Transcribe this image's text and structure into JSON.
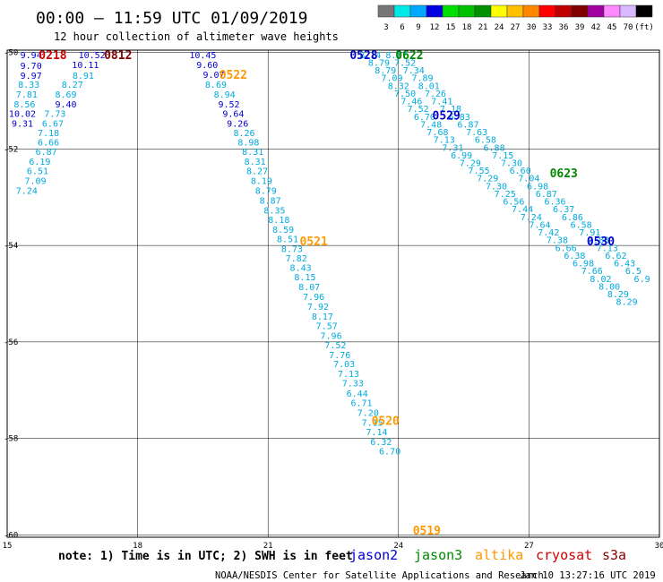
{
  "header": {
    "title": "00:00 – 11:59 UTC 01/09/2019",
    "subtitle": "12 hour collection of altimeter wave heights"
  },
  "colorbar": {
    "colors": [
      "#777777",
      "#00e8e8",
      "#00a8ff",
      "#0000e0",
      "#00e000",
      "#00c000",
      "#009000",
      "#ffff00",
      "#ffc000",
      "#ff8800",
      "#ff0000",
      "#c00000",
      "#800000",
      "#a000a0",
      "#ff88ff",
      "#d8b8ff",
      "#000000"
    ],
    "labels": [
      "3",
      "6",
      "9",
      "12",
      "15",
      "18",
      "21",
      "24",
      "27",
      "30",
      "33",
      "36",
      "39",
      "42",
      "45",
      "70",
      "(ft)"
    ]
  },
  "axes": {
    "x_ticks": [
      "15",
      "18",
      "21",
      "24",
      "27",
      "30"
    ],
    "y_ticks": [
      "-50",
      "-52",
      "-54",
      "-56",
      "-58",
      "-60"
    ]
  },
  "footer": {
    "note": "note:  1) Time is in UTC;  2) SWH is in feet",
    "credit": "NOAA/NESDIS Center for Satellite Applications and Research",
    "timestamp": "Jan 10 13:27:16 UTC 2019",
    "legend": [
      {
        "name": "jason2",
        "color": "#0000d0"
      },
      {
        "name": "jason3",
        "color": "#008800"
      },
      {
        "name": "altika",
        "color": "#ff9900"
      },
      {
        "name": "cryosat",
        "color": "#d00000"
      },
      {
        "name": "s3a",
        "color": "#880000"
      }
    ]
  },
  "chart_data": {
    "type": "scatter",
    "xlim": [
      15,
      30
    ],
    "ylim": [
      -60.05,
      -49.95
    ],
    "grid": true,
    "time_labels": [
      {
        "text": "0218",
        "lon": 16.05,
        "lat": -50.04,
        "color": "#d00000"
      },
      {
        "text": "0812",
        "lon": 17.55,
        "lat": -50.04,
        "color": "#880000"
      },
      {
        "text": "0522",
        "lon": 20.2,
        "lat": -50.45,
        "color": "#ff9900"
      },
      {
        "text": "0521",
        "lon": 22.05,
        "lat": -53.9,
        "color": "#ff9900"
      },
      {
        "text": "0520",
        "lon": 23.7,
        "lat": -57.63,
        "color": "#ff9900"
      },
      {
        "text": "0519",
        "lon": 24.65,
        "lat": -59.9,
        "color": "#ff9900"
      },
      {
        "text": "0528",
        "lon": 23.2,
        "lat": -50.04,
        "color": "#0000d0"
      },
      {
        "text": "0622",
        "lon": 24.25,
        "lat": -50.04,
        "color": "#008800"
      },
      {
        "text": "0529",
        "lon": 25.1,
        "lat": -51.3,
        "color": "#0000d0"
      },
      {
        "text": "0623",
        "lon": 27.8,
        "lat": -52.49,
        "color": "#008800"
      },
      {
        "text": "0530",
        "lon": 28.65,
        "lat": -53.9,
        "color": "#0000d0"
      }
    ],
    "tracks": [
      {
        "name": "a",
        "points": [
          {
            "lon": 15.55,
            "lat": -50.04,
            "v": "9.94",
            "c": "#0000d0"
          },
          {
            "lon": 15.55,
            "lat": -50.27,
            "v": "9.70",
            "c": "#0000d0"
          },
          {
            "lon": 15.55,
            "lat": -50.47,
            "v": "9.97",
            "c": "#0000d0"
          },
          {
            "lon": 15.5,
            "lat": -50.66,
            "v": "8.33",
            "c": "#00aadd"
          },
          {
            "lon": 15.45,
            "lat": -50.86,
            "v": "7.81",
            "c": "#00aadd"
          },
          {
            "lon": 15.4,
            "lat": -51.06,
            "v": "8.56",
            "c": "#00aadd"
          },
          {
            "lon": 15.35,
            "lat": -51.26,
            "v": "10.02",
            "c": "#0000d0"
          },
          {
            "lon": 15.35,
            "lat": -51.46,
            "v": "9.31",
            "c": "#0000d0"
          }
        ]
      },
      {
        "name": "b",
        "points": [
          {
            "lon": 16.95,
            "lat": -50.04,
            "v": "10.52",
            "c": "#0000d0"
          },
          {
            "lon": 16.8,
            "lat": -50.25,
            "v": "10.11",
            "c": "#0000d0"
          },
          {
            "lon": 16.75,
            "lat": -50.47,
            "v": "8.91",
            "c": "#00aadd"
          },
          {
            "lon": 16.5,
            "lat": -50.66,
            "v": "8.27",
            "c": "#00aadd"
          },
          {
            "lon": 16.35,
            "lat": -50.86,
            "v": "8.69",
            "c": "#00aadd"
          },
          {
            "lon": 16.35,
            "lat": -51.06,
            "v": "9.40",
            "c": "#0000d0"
          },
          {
            "lon": 16.1,
            "lat": -51.26,
            "v": "7.73",
            "c": "#00aadd"
          },
          {
            "lon": 16.05,
            "lat": -51.46,
            "v": "6.67",
            "c": "#00aadd"
          },
          {
            "lon": 15.95,
            "lat": -51.66,
            "v": "7.18",
            "c": "#00aadd"
          },
          {
            "lon": 15.95,
            "lat": -51.85,
            "v": "6.66",
            "c": "#00aadd"
          },
          {
            "lon": 15.9,
            "lat": -52.05,
            "v": "6.87",
            "c": "#00aadd"
          },
          {
            "lon": 15.75,
            "lat": -52.25,
            "v": "6.19",
            "c": "#00aadd"
          },
          {
            "lon": 15.7,
            "lat": -52.45,
            "v": "6.51",
            "c": "#00aadd"
          },
          {
            "lon": 15.65,
            "lat": -52.65,
            "v": "7.09",
            "c": "#00aadd"
          },
          {
            "lon": 15.45,
            "lat": -52.86,
            "v": "7.24",
            "c": "#00aadd"
          }
        ]
      },
      {
        "name": "c",
        "points": [
          {
            "lon": 19.5,
            "lat": -50.04,
            "v": "10.45",
            "c": "#0000d0"
          },
          {
            "lon": 19.6,
            "lat": -50.25,
            "v": "9.60",
            "c": "#0000d0"
          },
          {
            "lon": 19.75,
            "lat": -50.45,
            "v": "9.07",
            "c": "#0000d0"
          },
          {
            "lon": 19.8,
            "lat": -50.66,
            "v": "8.69",
            "c": "#00aadd"
          },
          {
            "lon": 20.0,
            "lat": -50.86,
            "v": "8.94",
            "c": "#00aadd"
          },
          {
            "lon": 20.1,
            "lat": -51.06,
            "v": "9.52",
            "c": "#0000d0"
          },
          {
            "lon": 20.2,
            "lat": -51.26,
            "v": "9.64",
            "c": "#0000d0"
          },
          {
            "lon": 20.3,
            "lat": -51.46,
            "v": "9.26",
            "c": "#0000d0"
          },
          {
            "lon": 20.45,
            "lat": -51.66,
            "v": "8.26",
            "c": "#00aadd"
          },
          {
            "lon": 20.55,
            "lat": -51.85,
            "v": "8.98",
            "c": "#00aadd"
          },
          {
            "lon": 20.65,
            "lat": -52.05,
            "v": "8.31",
            "c": "#00aadd"
          },
          {
            "lon": 20.7,
            "lat": -52.25,
            "v": "8.31",
            "c": "#00aadd"
          },
          {
            "lon": 20.75,
            "lat": -52.45,
            "v": "8.27",
            "c": "#00aadd"
          },
          {
            "lon": 20.85,
            "lat": -52.65,
            "v": "8.19",
            "c": "#00aadd"
          },
          {
            "lon": 20.95,
            "lat": -52.86,
            "v": "8.79",
            "c": "#00aadd"
          },
          {
            "lon": 21.05,
            "lat": -53.06,
            "v": "8.87",
            "c": "#00aadd"
          },
          {
            "lon": 21.15,
            "lat": -53.26,
            "v": "8.35",
            "c": "#00aadd"
          },
          {
            "lon": 21.25,
            "lat": -53.46,
            "v": "8.18",
            "c": "#00aadd"
          },
          {
            "lon": 21.35,
            "lat": -53.66,
            "v": "8.59",
            "c": "#00aadd"
          },
          {
            "lon": 21.45,
            "lat": -53.86,
            "v": "8.51",
            "c": "#00aadd"
          },
          {
            "lon": 21.55,
            "lat": -54.06,
            "v": "8.73",
            "c": "#00aadd"
          },
          {
            "lon": 21.65,
            "lat": -54.26,
            "v": "7.82",
            "c": "#00aadd"
          },
          {
            "lon": 21.75,
            "lat": -54.45,
            "v": "8.43",
            "c": "#00aadd"
          },
          {
            "lon": 21.85,
            "lat": -54.65,
            "v": "8.15",
            "c": "#00aadd"
          },
          {
            "lon": 21.95,
            "lat": -54.85,
            "v": "8.07",
            "c": "#00aadd"
          },
          {
            "lon": 22.05,
            "lat": -55.06,
            "v": "7.96",
            "c": "#00aadd"
          },
          {
            "lon": 22.15,
            "lat": -55.26,
            "v": "7.92",
            "c": "#00aadd"
          },
          {
            "lon": 22.25,
            "lat": -55.46,
            "v": "8.17",
            "c": "#00aadd"
          },
          {
            "lon": 22.35,
            "lat": -55.66,
            "v": "7.57",
            "c": "#00aadd"
          },
          {
            "lon": 22.45,
            "lat": -55.86,
            "v": "7.96",
            "c": "#00aadd"
          },
          {
            "lon": 22.55,
            "lat": -56.06,
            "v": "7.52",
            "c": "#00aadd"
          },
          {
            "lon": 22.65,
            "lat": -56.26,
            "v": "7.76",
            "c": "#00aadd"
          },
          {
            "lon": 22.75,
            "lat": -56.45,
            "v": "7.03",
            "c": "#00aadd"
          },
          {
            "lon": 22.85,
            "lat": -56.65,
            "v": "7.13",
            "c": "#00aadd"
          },
          {
            "lon": 22.95,
            "lat": -56.85,
            "v": "7.33",
            "c": "#00aadd"
          },
          {
            "lon": 23.05,
            "lat": -57.06,
            "v": "6.44",
            "c": "#00aadd"
          },
          {
            "lon": 23.15,
            "lat": -57.26,
            "v": "6.71",
            "c": "#00aadd"
          },
          {
            "lon": 23.3,
            "lat": -57.46,
            "v": "7.20",
            "c": "#00aadd"
          },
          {
            "lon": 23.4,
            "lat": -57.66,
            "v": "7.15",
            "c": "#00aadd"
          },
          {
            "lon": 23.5,
            "lat": -57.86,
            "v": "7.14",
            "c": "#00aadd"
          },
          {
            "lon": 23.6,
            "lat": -58.06,
            "v": "6.32",
            "c": "#00aadd"
          },
          {
            "lon": 23.8,
            "lat": -58.26,
            "v": "6.70",
            "c": "#00aadd"
          }
        ]
      },
      {
        "name": "d",
        "points": [
          {
            "lon": 23.35,
            "lat": -50.04,
            "v": "8.14",
            "c": "#00aadd"
          },
          {
            "lon": 23.55,
            "lat": -50.2,
            "v": "8.79",
            "c": "#00aadd"
          },
          {
            "lon": 23.7,
            "lat": -50.36,
            "v": "8.79",
            "c": "#00aadd"
          },
          {
            "lon": 23.85,
            "lat": -50.52,
            "v": "7.09",
            "c": "#00aadd"
          },
          {
            "lon": 24.0,
            "lat": -50.68,
            "v": "8.32",
            "c": "#00aadd"
          },
          {
            "lon": 24.15,
            "lat": -50.84,
            "v": "7.50",
            "c": "#00aadd"
          },
          {
            "lon": 24.3,
            "lat": -51.0,
            "v": "7.46",
            "c": "#00aadd"
          },
          {
            "lon": 24.45,
            "lat": -51.16,
            "v": "7.52",
            "c": "#00aadd"
          },
          {
            "lon": 24.6,
            "lat": -51.32,
            "v": "6.70",
            "c": "#00aadd"
          },
          {
            "lon": 24.75,
            "lat": -51.48,
            "v": "7.48",
            "c": "#00aadd"
          },
          {
            "lon": 24.9,
            "lat": -51.64,
            "v": "7.68",
            "c": "#00aadd"
          },
          {
            "lon": 25.05,
            "lat": -51.8,
            "v": "7.13",
            "c": "#00aadd"
          },
          {
            "lon": 25.25,
            "lat": -51.96,
            "v": "7.31",
            "c": "#00aadd"
          },
          {
            "lon": 25.45,
            "lat": -52.12,
            "v": "6.99",
            "c": "#00aadd"
          },
          {
            "lon": 25.65,
            "lat": -52.28,
            "v": "7.29",
            "c": "#00aadd"
          },
          {
            "lon": 25.85,
            "lat": -52.44,
            "v": "7.55",
            "c": "#00aadd"
          },
          {
            "lon": 26.05,
            "lat": -52.6,
            "v": "7.29",
            "c": "#00aadd"
          },
          {
            "lon": 26.25,
            "lat": -52.76,
            "v": "7.30",
            "c": "#00aadd"
          },
          {
            "lon": 26.45,
            "lat": -52.92,
            "v": "7.25",
            "c": "#00aadd"
          },
          {
            "lon": 26.65,
            "lat": -53.08,
            "v": "6.56",
            "c": "#00aadd"
          },
          {
            "lon": 26.85,
            "lat": -53.24,
            "v": "7.44",
            "c": "#00aadd"
          },
          {
            "lon": 27.05,
            "lat": -53.4,
            "v": "7.24",
            "c": "#00aadd"
          },
          {
            "lon": 27.25,
            "lat": -53.56,
            "v": "7.64",
            "c": "#00aadd"
          },
          {
            "lon": 27.45,
            "lat": -53.72,
            "v": "7.42",
            "c": "#00aadd"
          },
          {
            "lon": 27.65,
            "lat": -53.88,
            "v": "7.38",
            "c": "#00aadd"
          },
          {
            "lon": 27.85,
            "lat": -54.04,
            "v": "6.66",
            "c": "#00aadd"
          },
          {
            "lon": 28.05,
            "lat": -54.2,
            "v": "6.38",
            "c": "#00aadd"
          },
          {
            "lon": 28.25,
            "lat": -54.36,
            "v": "6.98",
            "c": "#00aadd"
          },
          {
            "lon": 28.45,
            "lat": -54.52,
            "v": "7.66",
            "c": "#00aadd"
          },
          {
            "lon": 28.65,
            "lat": -54.68,
            "v": "8.02",
            "c": "#00aadd"
          },
          {
            "lon": 28.85,
            "lat": -54.84,
            "v": "8.00",
            "c": "#00aadd"
          },
          {
            "lon": 29.05,
            "lat": -55.0,
            "v": "8.29",
            "c": "#00aadd"
          },
          {
            "lon": 29.25,
            "lat": -55.16,
            "v": "8.29",
            "c": "#00aadd"
          }
        ]
      },
      {
        "name": "e",
        "points": [
          {
            "lon": 23.95,
            "lat": -50.04,
            "v": "8.17",
            "c": "#00aadd"
          },
          {
            "lon": 24.15,
            "lat": -50.2,
            "v": "7.52",
            "c": "#00aadd"
          },
          {
            "lon": 24.35,
            "lat": -50.36,
            "v": "7.34",
            "c": "#00aadd"
          },
          {
            "lon": 24.55,
            "lat": -50.52,
            "v": "7.89",
            "c": "#00aadd"
          },
          {
            "lon": 24.7,
            "lat": -50.68,
            "v": "8.01",
            "c": "#00aadd"
          },
          {
            "lon": 24.85,
            "lat": -50.84,
            "v": "7.26",
            "c": "#00aadd"
          },
          {
            "lon": 25.0,
            "lat": -51.0,
            "v": "7.41",
            "c": "#00aadd"
          },
          {
            "lon": 25.2,
            "lat": -51.16,
            "v": "7.18",
            "c": "#00aadd"
          },
          {
            "lon": 25.4,
            "lat": -51.32,
            "v": "6.83",
            "c": "#00aadd"
          },
          {
            "lon": 25.6,
            "lat": -51.48,
            "v": "6.87",
            "c": "#00aadd"
          },
          {
            "lon": 25.8,
            "lat": -51.64,
            "v": "7.63",
            "c": "#00aadd"
          },
          {
            "lon": 26.0,
            "lat": -51.8,
            "v": "6.58",
            "c": "#00aadd"
          },
          {
            "lon": 26.2,
            "lat": -51.96,
            "v": "6.88",
            "c": "#00aadd"
          },
          {
            "lon": 26.4,
            "lat": -52.12,
            "v": "7.15",
            "c": "#00aadd"
          },
          {
            "lon": 26.6,
            "lat": -52.28,
            "v": "7.30",
            "c": "#00aadd"
          },
          {
            "lon": 26.8,
            "lat": -52.44,
            "v": "6.60",
            "c": "#00aadd"
          },
          {
            "lon": 27.0,
            "lat": -52.6,
            "v": "7.04",
            "c": "#00aadd"
          },
          {
            "lon": 27.2,
            "lat": -52.76,
            "v": "6.98",
            "c": "#00aadd"
          },
          {
            "lon": 27.4,
            "lat": -52.92,
            "v": "6.87",
            "c": "#00aadd"
          },
          {
            "lon": 27.6,
            "lat": -53.08,
            "v": "6.36",
            "c": "#00aadd"
          },
          {
            "lon": 27.8,
            "lat": -53.24,
            "v": "6.37",
            "c": "#00aadd"
          },
          {
            "lon": 28.0,
            "lat": -53.4,
            "v": "6.86",
            "c": "#00aadd"
          },
          {
            "lon": 28.2,
            "lat": -53.56,
            "v": "6.58",
            "c": "#00aadd"
          },
          {
            "lon": 28.4,
            "lat": -53.72,
            "v": "7.91",
            "c": "#00aadd"
          },
          {
            "lon": 28.6,
            "lat": -53.88,
            "v": "7.88",
            "c": "#00aadd"
          },
          {
            "lon": 28.8,
            "lat": -54.04,
            "v": "7.13",
            "c": "#00aadd"
          },
          {
            "lon": 29.0,
            "lat": -54.2,
            "v": "6.62",
            "c": "#00aadd"
          },
          {
            "lon": 29.2,
            "lat": -54.36,
            "v": "6.43",
            "c": "#00aadd"
          },
          {
            "lon": 29.4,
            "lat": -54.52,
            "v": "6.5",
            "c": "#00aadd"
          },
          {
            "lon": 29.6,
            "lat": -54.68,
            "v": "6.9",
            "c": "#00aadd"
          }
        ]
      }
    ]
  }
}
